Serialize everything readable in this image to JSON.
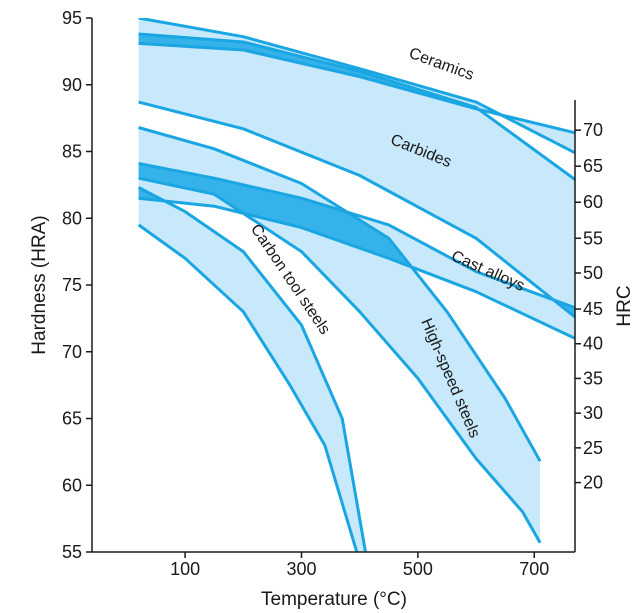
{
  "chart_data": {
    "type": "area",
    "xlabel": "Temperature (°C)",
    "ylabel": "Hardness (HRA)",
    "y2label": "HRC",
    "xlim": [
      -60,
      770
    ],
    "ylim": [
      55,
      95
    ],
    "xticks": [
      100,
      300,
      500,
      700
    ],
    "yticks": [
      55,
      60,
      65,
      70,
      75,
      80,
      85,
      90,
      95
    ],
    "y2ticks": [
      {
        "label": "20",
        "hra": 60.2
      },
      {
        "label": "25",
        "hra": 62.8
      },
      {
        "label": "30",
        "hra": 65.4
      },
      {
        "label": "35",
        "hra": 68.0
      },
      {
        "label": "40",
        "hra": 70.6
      },
      {
        "label": "45",
        "hra": 73.2
      },
      {
        "label": "50",
        "hra": 75.9
      },
      {
        "label": "55",
        "hra": 78.5
      },
      {
        "label": "60",
        "hra": 81.2
      },
      {
        "label": "65",
        "hra": 83.9
      },
      {
        "label": "70",
        "hra": 86.6
      }
    ],
    "series": [
      {
        "name": "Ceramics",
        "upper": [
          [
            20,
            95.0
          ],
          [
            200,
            93.6
          ],
          [
            400,
            91.2
          ],
          [
            600,
            88.7
          ],
          [
            770,
            84.9
          ]
        ],
        "lower": [
          [
            20,
            93.1
          ],
          [
            200,
            92.6
          ],
          [
            400,
            90.6
          ],
          [
            600,
            88.2
          ],
          [
            770,
            86.4
          ]
        ]
      },
      {
        "name": "Carbides",
        "upper": [
          [
            20,
            93.8
          ],
          [
            200,
            93.2
          ],
          [
            400,
            91.0
          ],
          [
            600,
            88.3
          ],
          [
            770,
            82.9
          ]
        ],
        "lower": [
          [
            20,
            88.7
          ],
          [
            200,
            86.7
          ],
          [
            400,
            83.2
          ],
          [
            600,
            78.5
          ],
          [
            770,
            72.6
          ]
        ]
      },
      {
        "name": "Cast alloys",
        "upper": [
          [
            20,
            84.1
          ],
          [
            150,
            83.0
          ],
          [
            300,
            81.5
          ],
          [
            450,
            79.5
          ],
          [
            600,
            76.0
          ],
          [
            770,
            73.3
          ]
        ],
        "lower": [
          [
            20,
            81.5
          ],
          [
            150,
            80.9
          ],
          [
            300,
            79.3
          ],
          [
            450,
            77.0
          ],
          [
            600,
            74.5
          ],
          [
            770,
            71.0
          ]
        ]
      },
      {
        "name": "High-speed steels",
        "upper": [
          [
            20,
            86.8
          ],
          [
            150,
            85.2
          ],
          [
            300,
            82.6
          ],
          [
            450,
            78.5
          ],
          [
            550,
            73.0
          ],
          [
            650,
            66.5
          ],
          [
            710,
            61.8
          ]
        ],
        "lower": [
          [
            20,
            83.0
          ],
          [
            150,
            81.8
          ],
          [
            300,
            77.5
          ],
          [
            400,
            73.0
          ],
          [
            500,
            68.0
          ],
          [
            600,
            62.0
          ],
          [
            680,
            58.0
          ],
          [
            710,
            55.7
          ]
        ]
      },
      {
        "name": "Carbon tool steels",
        "upper": [
          [
            20,
            82.3
          ],
          [
            100,
            80.5
          ],
          [
            200,
            77.5
          ],
          [
            300,
            72.0
          ],
          [
            370,
            65.0
          ],
          [
            410,
            55.0
          ]
        ],
        "lower": [
          [
            20,
            79.5
          ],
          [
            100,
            77.0
          ],
          [
            200,
            73.0
          ],
          [
            280,
            67.5
          ],
          [
            340,
            63.0
          ],
          [
            395,
            55.0
          ]
        ]
      }
    ],
    "annotations": [
      {
        "text": "Ceramics",
        "x": 540,
        "y": 91.5,
        "angle": 20
      },
      {
        "text": "Carbides",
        "x": 505,
        "y": 85.0,
        "angle": 22
      },
      {
        "text": "Cast alloys",
        "x": 620,
        "y": 76.0,
        "angle": 24
      },
      {
        "text": "Carbon tool steels",
        "x": 280,
        "y": 75.4,
        "angle": 56
      },
      {
        "text": "High-speed steels",
        "x": 555,
        "y": 68.0,
        "angle": 67
      }
    ],
    "colors": {
      "fill": "#c8e9fb",
      "overlap": "#36b2ea",
      "line": "#19a6e3",
      "axis": "#1a1a1a"
    },
    "grid": false,
    "legend": "none"
  }
}
